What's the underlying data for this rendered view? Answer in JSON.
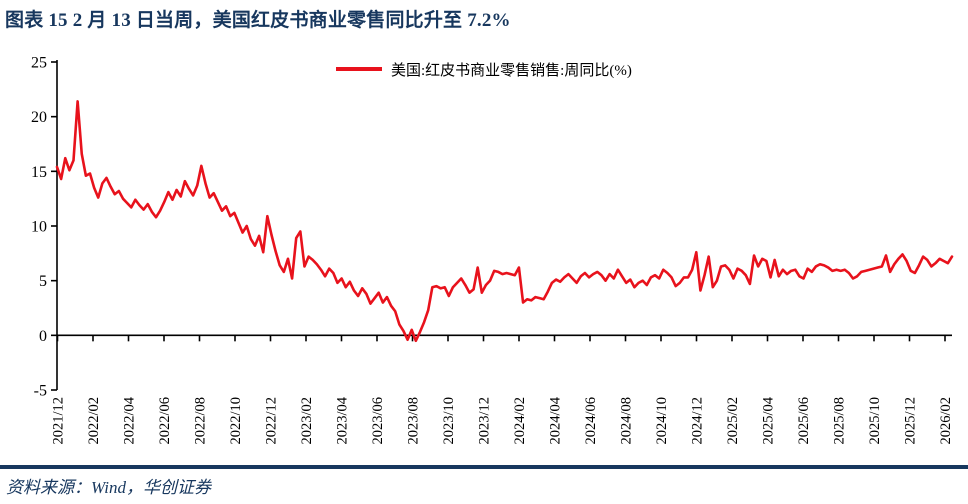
{
  "title": {
    "text": "图表 15  2 月 13 日当周，美国红皮书商业零售同比升至 7.2%"
  },
  "legend": {
    "label": "美国:红皮书商业零售销售:周同比(%)"
  },
  "footer": {
    "source": "资料来源：Wind，华创证券"
  },
  "colors": {
    "accent_navy": "#17375E",
    "line_red": "#E8121C",
    "axis_black": "#000000",
    "background": "#FFFFFF"
  },
  "chart_data": {
    "type": "line",
    "title": "2 月 13 日当周，美国红皮书商业零售同比升至 7.2%",
    "ylabel": "",
    "xlabel": "",
    "ylim": [
      -5,
      25
    ],
    "y_ticks": [
      25,
      20,
      15,
      10,
      5,
      0,
      -5
    ],
    "grid": false,
    "legend_position": "top-center",
    "frequency": "weekly",
    "latest_value": 7.2,
    "x_ticks": [
      "2021/12",
      "2022/02",
      "2022/04",
      "2022/06",
      "2022/08",
      "2022/10",
      "2022/12",
      "2023/02",
      "2023/04",
      "2023/06",
      "2023/08",
      "2023/10",
      "2023/12",
      "2024/02",
      "2024/04",
      "2024/06",
      "2024/08",
      "2024/10",
      "2024/12",
      "2025/02",
      "2025/04",
      "2025/06",
      "2025/08",
      "2025/10",
      "2025/12",
      "2026/02"
    ],
    "series": [
      {
        "name": "美国:红皮书商业零售销售:周同比(%)",
        "color": "#E8121C",
        "values": [
          15.4,
          14.3,
          16.2,
          15.1,
          16.0,
          21.4,
          16.6,
          14.6,
          14.8,
          13.5,
          12.6,
          13.9,
          14.4,
          13.6,
          12.9,
          13.2,
          12.5,
          12.1,
          11.7,
          12.4,
          11.9,
          11.5,
          12.0,
          11.3,
          10.8,
          11.4,
          12.2,
          13.1,
          12.4,
          13.3,
          12.7,
          14.1,
          13.4,
          12.8,
          13.7,
          15.5,
          13.9,
          12.6,
          13.0,
          12.2,
          11.4,
          11.8,
          10.9,
          11.2,
          10.3,
          9.4,
          10.0,
          8.8,
          8.2,
          9.1,
          7.6,
          10.9,
          9.2,
          7.7,
          6.4,
          5.8,
          7.0,
          5.2,
          8.9,
          9.5,
          6.3,
          7.2,
          6.9,
          6.5,
          6.0,
          5.4,
          6.1,
          5.7,
          4.8,
          5.2,
          4.4,
          4.9,
          4.1,
          3.6,
          4.3,
          3.8,
          2.9,
          3.4,
          3.9,
          3.0,
          3.5,
          2.7,
          2.2,
          1.0,
          0.4,
          -0.4,
          0.5,
          -0.5,
          0.3,
          1.2,
          2.3,
          4.4,
          4.5,
          4.3,
          4.4,
          3.6,
          4.4,
          4.8,
          5.2,
          4.6,
          3.9,
          4.2,
          6.2,
          3.9,
          4.6,
          5.0,
          5.9,
          5.8,
          5.6,
          5.7,
          5.6,
          5.5,
          6.2,
          3.0,
          3.3,
          3.2,
          3.5,
          3.4,
          3.3,
          4.0,
          4.8,
          5.1,
          4.9,
          5.3,
          5.6,
          5.2,
          4.8,
          5.4,
          5.7,
          5.3,
          5.6,
          5.8,
          5.5,
          5.0,
          5.6,
          5.2,
          6.0,
          5.4,
          4.8,
          5.1,
          4.4,
          4.8,
          5.0,
          4.6,
          5.3,
          5.5,
          5.2,
          6.0,
          5.7,
          5.3,
          4.5,
          4.8,
          5.3,
          5.3,
          6.0,
          7.6,
          4.1,
          5.5,
          7.2,
          4.4,
          5.0,
          6.3,
          6.4,
          6.0,
          5.2,
          6.1,
          5.9,
          5.5,
          4.7,
          7.3,
          6.3,
          7.0,
          6.8,
          5.3,
          6.9,
          5.4,
          6.0,
          5.6,
          5.9,
          6.0,
          5.4,
          5.2,
          6.1,
          5.8,
          6.3,
          6.5,
          6.4,
          6.2,
          5.9,
          6.0,
          5.9,
          6.0,
          5.7,
          5.2,
          5.4,
          5.8,
          5.9,
          6.0,
          6.1,
          6.2,
          6.3,
          7.3,
          5.8,
          6.5,
          7.0,
          7.4,
          6.8,
          5.9,
          5.7,
          6.4,
          7.2,
          6.9,
          6.3,
          6.6,
          7.0,
          6.8,
          6.6,
          7.2
        ]
      }
    ]
  }
}
